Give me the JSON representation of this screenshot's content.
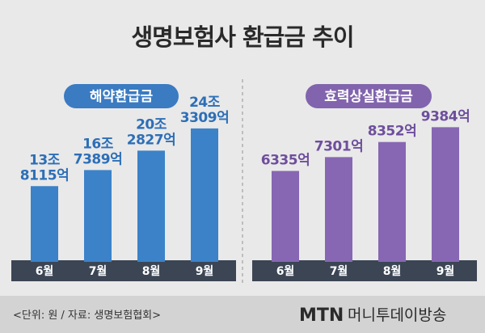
{
  "title": "생명보험사 환급금 추이",
  "colors": {
    "background": "#e9e9e9",
    "blue_bar": "#3b82c8",
    "blue_pill": "#3a7bc2",
    "blue_text": "#2d6fb7",
    "purple_bar": "#8767b3",
    "purple_pill": "#8164ad",
    "purple_text": "#6e4f9c",
    "axis_band": "#3b4554",
    "footer_band": "#d3d3d3"
  },
  "chart_data": [
    {
      "type": "bar",
      "title": "해약환급금",
      "categories": [
        "6월",
        "7월",
        "8월",
        "9월"
      ],
      "values": [
        13.8115,
        16.7389,
        20.2827,
        24.3309
      ],
      "unit": "조원",
      "ylim": [
        0,
        28
      ],
      "labels": [
        [
          "13조",
          "8115억"
        ],
        [
          "16조",
          "7389억"
        ],
        [
          "20조",
          "2827억"
        ],
        [
          "24조",
          "3309억"
        ]
      ]
    },
    {
      "type": "bar",
      "title": "효력상실환급금",
      "categories": [
        "6월",
        "7월",
        "8월",
        "9월"
      ],
      "values": [
        6335,
        7301,
        8352,
        9384
      ],
      "unit": "억원",
      "ylim": [
        0,
        10700
      ],
      "labels": [
        [
          "6335억"
        ],
        [
          "7301억"
        ],
        [
          "8352억"
        ],
        [
          "9384억"
        ]
      ]
    }
  ],
  "footer": {
    "source": "<단위: 원 / 자료: 생명보험협회>",
    "logo_mtn": "MTN",
    "logo_kr": "머니투데이방송"
  }
}
